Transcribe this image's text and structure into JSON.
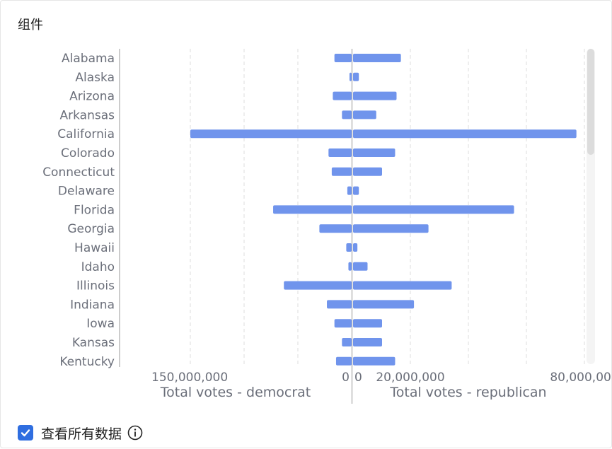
{
  "card": {
    "title": "组件"
  },
  "footer": {
    "checkbox_checked": true,
    "label": "查看所有数据",
    "info_icon": "info-circle-icon"
  },
  "colors": {
    "bar": "#7094ec",
    "label": "#6b6f7a",
    "grid": "#dddddd",
    "axis": "#bbbbbb",
    "checkbox": "#2f6ee0"
  },
  "chart_data": {
    "type": "bar",
    "orientation": "horizontal",
    "layout": "diverging",
    "categories": [
      "Alabama",
      "Alaska",
      "Arizona",
      "Arkansas",
      "California",
      "Colorado",
      "Connecticut",
      "Delaware",
      "Florida",
      "Georgia",
      "Hawaii",
      "Idaho",
      "Illinois",
      "Indiana",
      "Iowa",
      "Kansas",
      "Kentucky"
    ],
    "series": [
      {
        "name": "Total votes - democrat",
        "side": "left",
        "values": [
          16000000,
          2000000,
          17500000,
          9000000,
          150000000,
          21500000,
          18500000,
          4000000,
          73000000,
          30000000,
          5000000,
          3000000,
          63000000,
          23000000,
          16000000,
          9000000,
          14500000
        ]
      },
      {
        "name": "Total votes - republican",
        "side": "right",
        "values": [
          16500000,
          2000000,
          15000000,
          8000000,
          77000000,
          14500000,
          10000000,
          2000000,
          55500000,
          26000000,
          1500000,
          5000000,
          34000000,
          21000000,
          10000000,
          10000000,
          14500000
        ]
      }
    ],
    "left_axis": {
      "label": "Total votes - democrat",
      "range": [
        150000000,
        0
      ],
      "ticks": [
        {
          "value": 150000000,
          "label": "150,000,000"
        },
        {
          "value": 0,
          "label": "0"
        }
      ],
      "gridlines": [
        0,
        50000000,
        100000000,
        150000000
      ]
    },
    "right_axis": {
      "label": "Total votes - republican",
      "range": [
        0,
        85000000
      ],
      "ticks": [
        {
          "value": 0,
          "label": "0"
        },
        {
          "value": 20000000,
          "label": "20,000,000"
        },
        {
          "value": 80000000,
          "label": "80,000,000"
        }
      ],
      "gridlines": [
        0,
        20000000,
        40000000,
        60000000,
        80000000
      ]
    },
    "grid": true,
    "legend": "none"
  }
}
